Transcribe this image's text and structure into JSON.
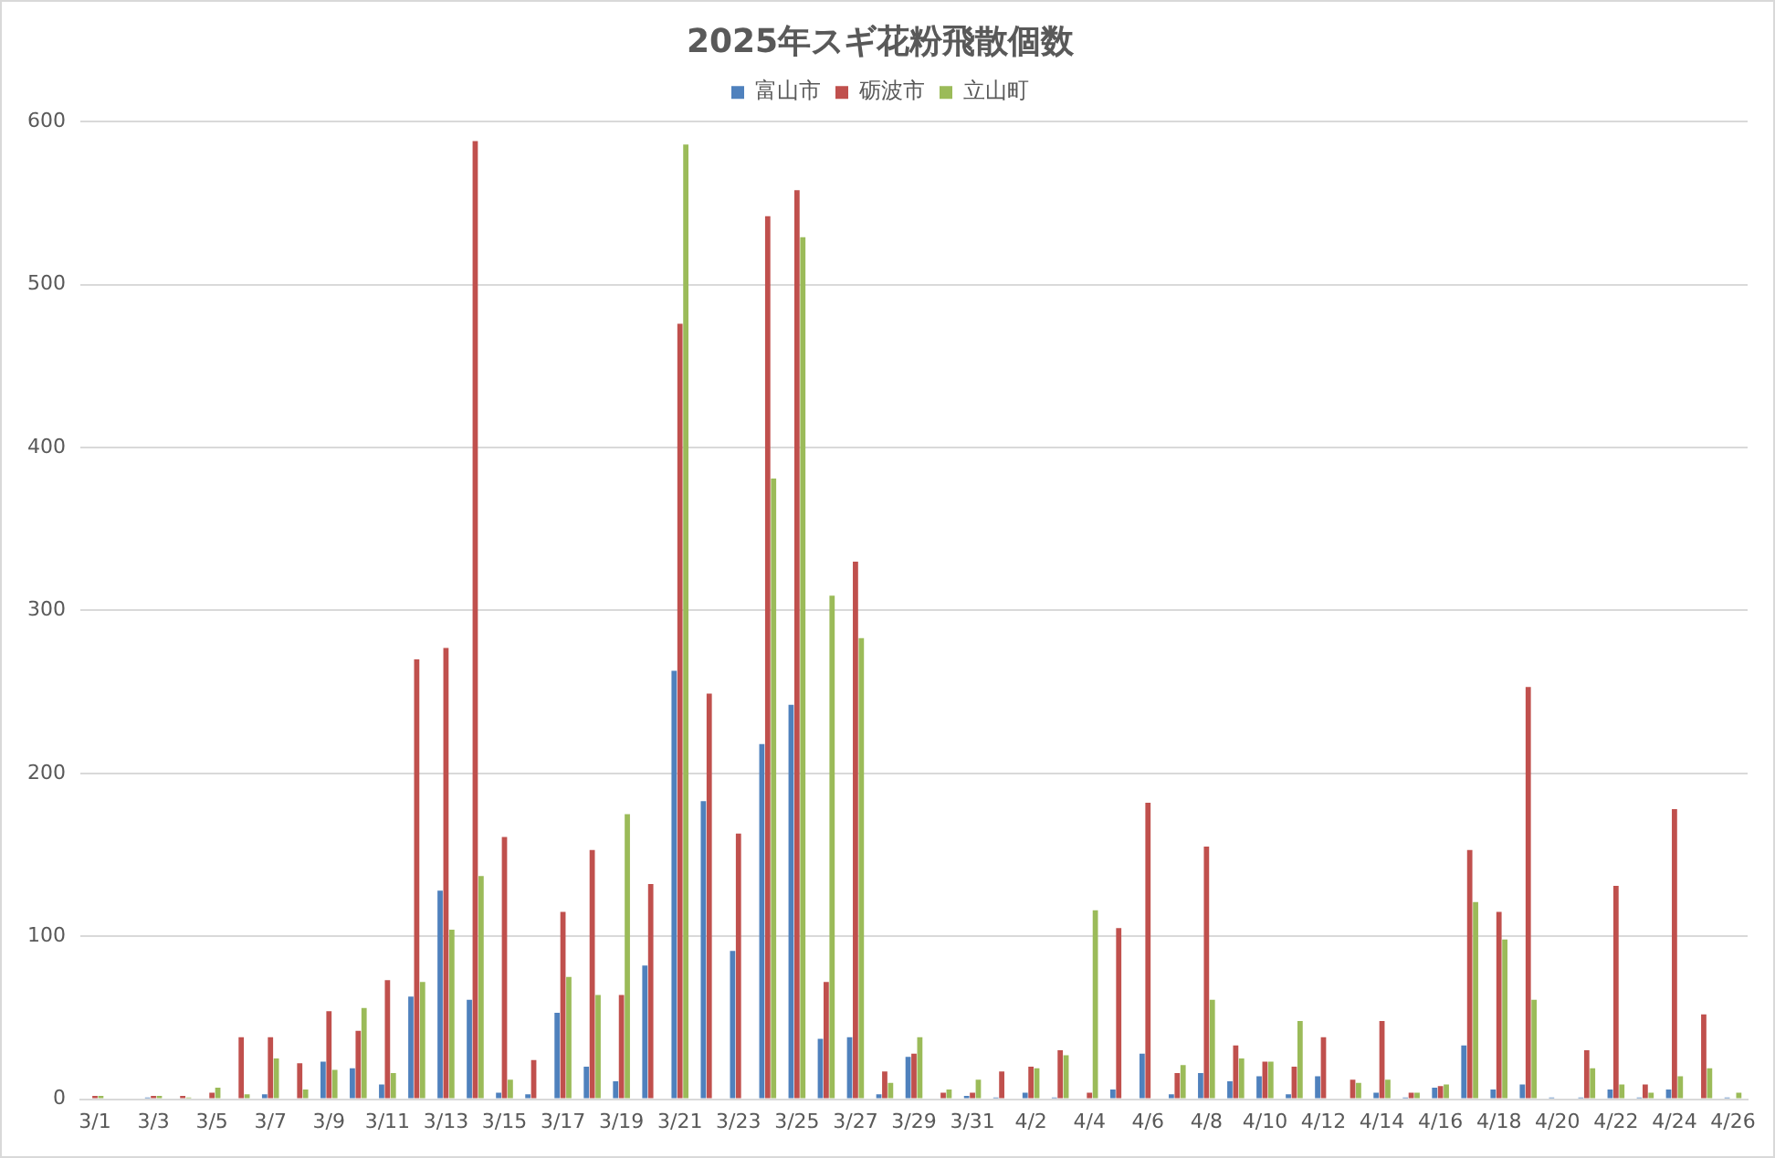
{
  "chart_data": {
    "type": "bar",
    "title": "2025年スギ花粉飛散個数",
    "categories": [
      "3/1",
      null,
      "3/3",
      null,
      "3/5",
      null,
      "3/7",
      null,
      "3/9",
      null,
      "3/11",
      null,
      "3/13",
      null,
      "3/15",
      null,
      "3/17",
      null,
      "3/19",
      null,
      "3/21",
      null,
      "3/23",
      null,
      "3/25",
      null,
      "3/27",
      null,
      "3/29",
      null,
      "3/31",
      null,
      "4/2",
      null,
      "4/4",
      null,
      "4/6",
      null,
      "4/8",
      null,
      "4/10",
      null,
      "4/12",
      null,
      "4/14",
      null,
      "4/16",
      null,
      "4/18",
      null,
      "4/20",
      null,
      "4/22",
      null,
      "4/24",
      null,
      "4/26"
    ],
    "series": [
      {
        "name": "富山市",
        "color": "#4f81bd",
        "values": [
          0,
          0,
          1,
          0,
          0,
          0,
          3,
          0,
          23,
          19,
          9,
          63,
          128,
          61,
          4,
          3,
          53,
          20,
          11,
          82,
          263,
          183,
          91,
          218,
          242,
          37,
          38,
          3,
          26,
          0,
          2,
          1,
          4,
          1,
          0,
          6,
          28,
          3,
          16,
          11,
          14,
          3,
          14,
          0,
          4,
          1,
          7,
          33,
          6,
          9,
          1,
          1,
          6,
          1,
          6,
          0,
          1
        ]
      },
      {
        "name": "砺波市",
        "color": "#c0504d",
        "values": [
          2,
          0,
          2,
          2,
          4,
          38,
          38,
          22,
          54,
          42,
          73,
          270,
          277,
          588,
          161,
          24,
          115,
          153,
          64,
          132,
          476,
          249,
          163,
          542,
          558,
          72,
          330,
          17,
          28,
          4,
          4,
          17,
          20,
          30,
          4,
          105,
          182,
          16,
          155,
          33,
          23,
          20,
          38,
          12,
          48,
          4,
          8,
          153,
          115,
          253,
          0,
          30,
          131,
          9,
          178,
          52,
          0
        ]
      },
      {
        "name": "立山町",
        "color": "#9bbb59",
        "values": [
          2,
          0,
          2,
          1,
          7,
          3,
          25,
          6,
          18,
          56,
          16,
          72,
          104,
          137,
          12,
          0,
          75,
          64,
          175,
          0,
          586,
          0,
          0,
          381,
          529,
          309,
          283,
          10,
          38,
          6,
          12,
          0,
          19,
          27,
          116,
          0,
          0,
          21,
          61,
          25,
          23,
          48,
          0,
          10,
          12,
          4,
          9,
          121,
          98,
          61,
          0,
          19,
          9,
          4,
          14,
          19,
          4
        ]
      }
    ],
    "ylim": [
      0,
      600
    ],
    "yticks": [
      0,
      100,
      200,
      300,
      400,
      500,
      600
    ],
    "grid": "y",
    "legend": "top"
  }
}
